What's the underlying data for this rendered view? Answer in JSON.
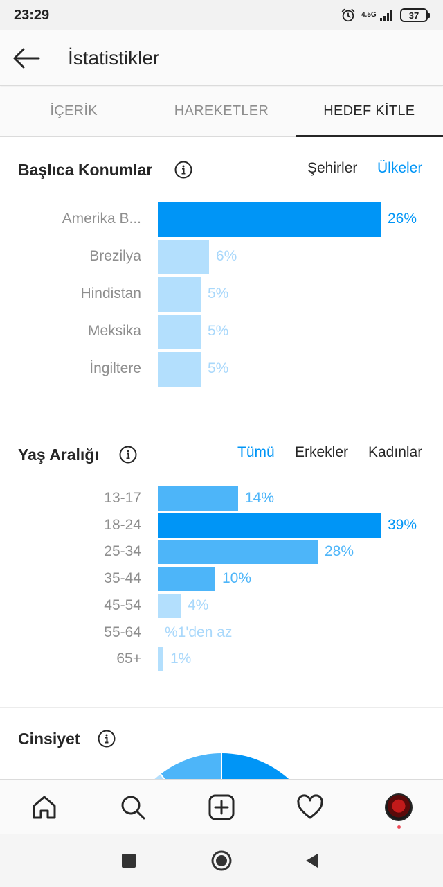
{
  "status": {
    "time": "23:29",
    "network": "4.5G",
    "battery": "37"
  },
  "header": {
    "title": "İstatistikler"
  },
  "tabs": [
    {
      "label": "İÇERİK",
      "active": false
    },
    {
      "label": "HAREKETLER",
      "active": false
    },
    {
      "label": "HEDEF KİTLE",
      "active": true
    }
  ],
  "locations": {
    "title": "Başlıca Konumlar",
    "filters": [
      {
        "label": "Şehirler",
        "active": false
      },
      {
        "label": "Ülkeler",
        "active": true
      }
    ],
    "chart_data": {
      "type": "bar",
      "orientation": "horizontal",
      "categories": [
        "Amerika B...",
        "Brezilya",
        "Hindistan",
        "Meksika",
        "İngiltere"
      ],
      "values": [
        26,
        6,
        5,
        5,
        5
      ],
      "value_labels": [
        "26%",
        "6%",
        "5%",
        "5%",
        "5%"
      ]
    }
  },
  "age": {
    "title": "Yaş Aralığı",
    "filters": [
      {
        "label": "Tümü",
        "active": true
      },
      {
        "label": "Erkekler",
        "active": false
      },
      {
        "label": "Kadınlar",
        "active": false
      }
    ],
    "chart_data": {
      "type": "bar",
      "orientation": "horizontal",
      "categories": [
        "13-17",
        "18-24",
        "25-34",
        "35-44",
        "45-54",
        "55-64",
        "65+"
      ],
      "values": [
        14,
        39,
        28,
        10,
        4,
        0.5,
        1
      ],
      "value_labels": [
        "14%",
        "39%",
        "28%",
        "10%",
        "4%",
        "%1'den az",
        "1%"
      ]
    }
  },
  "gender": {
    "title": "Cinsiyet",
    "chart_data": {
      "type": "pie",
      "visible": "partial"
    }
  },
  "colors": {
    "accent": "#0095f6",
    "bar_strong": "#0095f6",
    "bar_mid": "#4db5f9",
    "bar_light": "#b3dffd",
    "label_light": "#a9d8fb"
  }
}
